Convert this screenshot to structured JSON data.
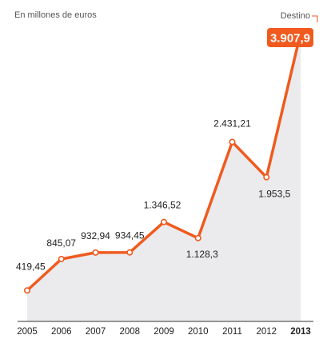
{
  "chart_data": {
    "type": "line",
    "unit_label": "En millones de euros",
    "categories": [
      "2005",
      "2006",
      "2007",
      "2008",
      "2009",
      "2010",
      "2011",
      "2012",
      "2013"
    ],
    "values": [
      419.45,
      845.07,
      932.94,
      934.45,
      1346.52,
      1128.3,
      2431.21,
      1953.5,
      3907.9
    ],
    "value_labels": [
      "419,45",
      "845,07",
      "932,94",
      "934,45",
      "1.346,52",
      "1.128,3",
      "2.431,21",
      "1.953,5",
      "3.907,9"
    ],
    "highlight": {
      "index": 8,
      "tag": "Destino"
    },
    "ylim": [
      0,
      4300
    ],
    "grid": false,
    "legend": "none",
    "colors": {
      "line": "#f05a1e",
      "area": "#ebebed",
      "marker_fill": "#ffffff",
      "highlight_bg": "#f05a1e",
      "axis": "#333333"
    }
  }
}
